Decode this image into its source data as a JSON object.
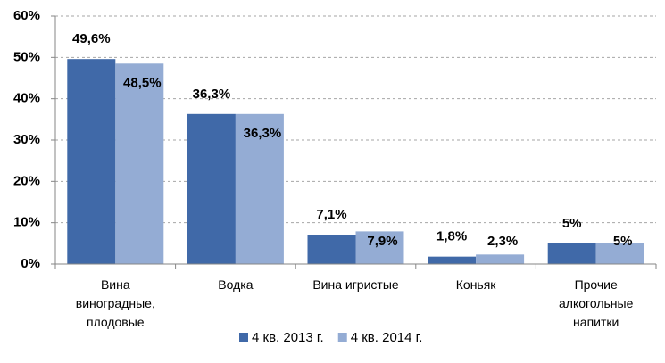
{
  "chart_data": {
    "type": "bar",
    "categories": [
      "Вина виноградные, плодовые",
      "Водка",
      "Вина игристые",
      "Коньяк",
      "Прочие алкогольные напитки"
    ],
    "series": [
      {
        "name": "4 кв. 2013 г.",
        "color": "#4069a8",
        "values": [
          49.6,
          36.3,
          7.1,
          1.8,
          5
        ],
        "value_labels": [
          "49,6%",
          "36,3%",
          "7,1%",
          "1,8%",
          "5%"
        ]
      },
      {
        "name": "4 кв. 2014 г.",
        "color": "#94acd4",
        "values": [
          48.5,
          36.3,
          7.9,
          2.3,
          5
        ],
        "value_labels": [
          "48,5%",
          "36,3%",
          "7,9%",
          "2,3%",
          "5%"
        ]
      }
    ],
    "ylim": [
      0,
      60
    ],
    "yticks": [
      {
        "value": 0,
        "label": "0%"
      },
      {
        "value": 10,
        "label": "10%"
      },
      {
        "value": 20,
        "label": "20%"
      },
      {
        "value": 30,
        "label": "30%"
      },
      {
        "value": 40,
        "label": "40%"
      },
      {
        "value": 50,
        "label": "50%"
      },
      {
        "value": 60,
        "label": "60%"
      }
    ],
    "grid": true,
    "legend": "bottom"
  }
}
